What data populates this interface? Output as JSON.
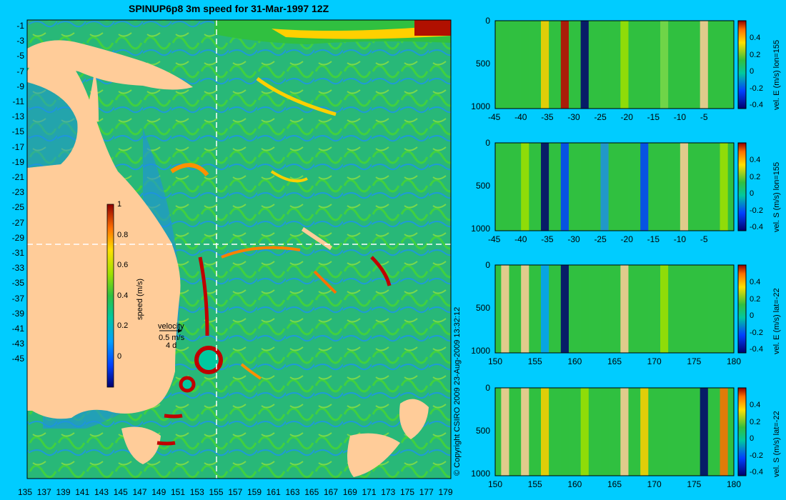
{
  "title": "SPINUP6p8 3m speed for 31-Mar-1997 12Z",
  "map": {
    "lat_ticks": [
      "-1",
      "-3",
      "-5",
      "-7",
      "-9",
      "-11",
      "-13",
      "-15",
      "-17",
      "-19",
      "-21",
      "-23",
      "-25",
      "-27",
      "-29",
      "-31",
      "-33",
      "-35",
      "-37",
      "-39",
      "-41",
      "-43",
      "-45"
    ],
    "lon_ticks": [
      "135",
      "137",
      "139",
      "141",
      "143",
      "145",
      "147",
      "149",
      "151",
      "153",
      "155",
      "157",
      "159",
      "161",
      "163",
      "165",
      "167",
      "169",
      "171",
      "173",
      "175",
      "177",
      "179"
    ],
    "colorbar": {
      "label": "speed (m/s)",
      "ticks": [
        "1",
        "0.8",
        "0.6",
        "0.4",
        "0.2",
        "0"
      ]
    },
    "velocity_legend": {
      "title": "velocity",
      "scale": "0.5 m/s",
      "duration": "4 d"
    }
  },
  "copyright": "© Copyright CSIRO 2009   23-Aug-2009 13:32:12",
  "panels": [
    {
      "label": "vel. E (m/s) lon=155",
      "x_ticks": [
        "-45",
        "-40",
        "-35",
        "-30",
        "-25",
        "-20",
        "-15",
        "-10",
        "-5"
      ],
      "y_ticks": [
        "0",
        "500",
        "1000"
      ],
      "cbar_ticks": [
        "0.4",
        "0.2",
        "0",
        "-0.2",
        "-0.4"
      ]
    },
    {
      "label": "vel. S (m/s) lon=155",
      "x_ticks": [
        "-45",
        "-40",
        "-35",
        "-30",
        "-25",
        "-20",
        "-15",
        "-10",
        "-5"
      ],
      "y_ticks": [
        "0",
        "500",
        "1000"
      ],
      "cbar_ticks": [
        "0.4",
        "0.2",
        "0",
        "-0.2",
        "-0.4"
      ]
    },
    {
      "label": "vel. E (m/s) lat=-22",
      "x_ticks": [
        "150",
        "155",
        "160",
        "165",
        "170",
        "175",
        "180"
      ],
      "y_ticks": [
        "0",
        "500",
        "1000"
      ],
      "cbar_ticks": [
        "0.4",
        "0.2",
        "0",
        "-0.2",
        "-0.4"
      ]
    },
    {
      "label": "vel. S (m/s) lat=-22",
      "x_ticks": [
        "150",
        "155",
        "160",
        "165",
        "170",
        "175",
        "180"
      ],
      "y_ticks": [
        "0",
        "500",
        "1000"
      ],
      "cbar_ticks": [
        "0.4",
        "0.2",
        "0",
        "-0.2",
        "-0.4"
      ]
    }
  ]
}
